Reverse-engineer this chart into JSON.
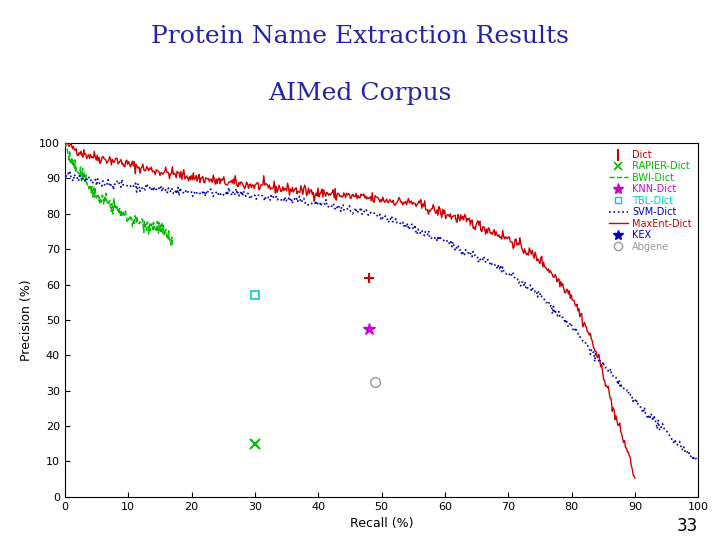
{
  "title_line1": "Protein Name Extraction Results",
  "title_line2": "AIMed Corpus",
  "title_color": "#2222AA",
  "title_fontsize": 18,
  "separator_color": "#E05555",
  "background_color": "#FFFFFF",
  "xlabel": "Recall (%)",
  "ylabel": "Precision (%)",
  "xlim": [
    0,
    100
  ],
  "ylim": [
    0,
    100
  ],
  "xticks": [
    0,
    10,
    20,
    30,
    40,
    50,
    60,
    70,
    80,
    90,
    100
  ],
  "yticks": [
    0,
    10,
    20,
    30,
    40,
    50,
    60,
    70,
    80,
    90,
    100
  ],
  "page_number": "33",
  "dict_point": [
    48.0,
    62.0
  ],
  "rapier_point": [
    30.0,
    15.0
  ],
  "knn_point": [
    48.0,
    47.5
  ],
  "tbl_point": [
    30.0,
    57.0
  ],
  "kex_point": [
    48.0,
    47.5
  ],
  "abgene_point": [
    49.0,
    32.5
  ],
  "legend_colors": [
    "#CC0000",
    "#00BB00",
    "#00BB00",
    "#CC00CC",
    "#00CCCC",
    "#0000BB",
    "#CC0000",
    "#0000BB",
    "#999999"
  ]
}
